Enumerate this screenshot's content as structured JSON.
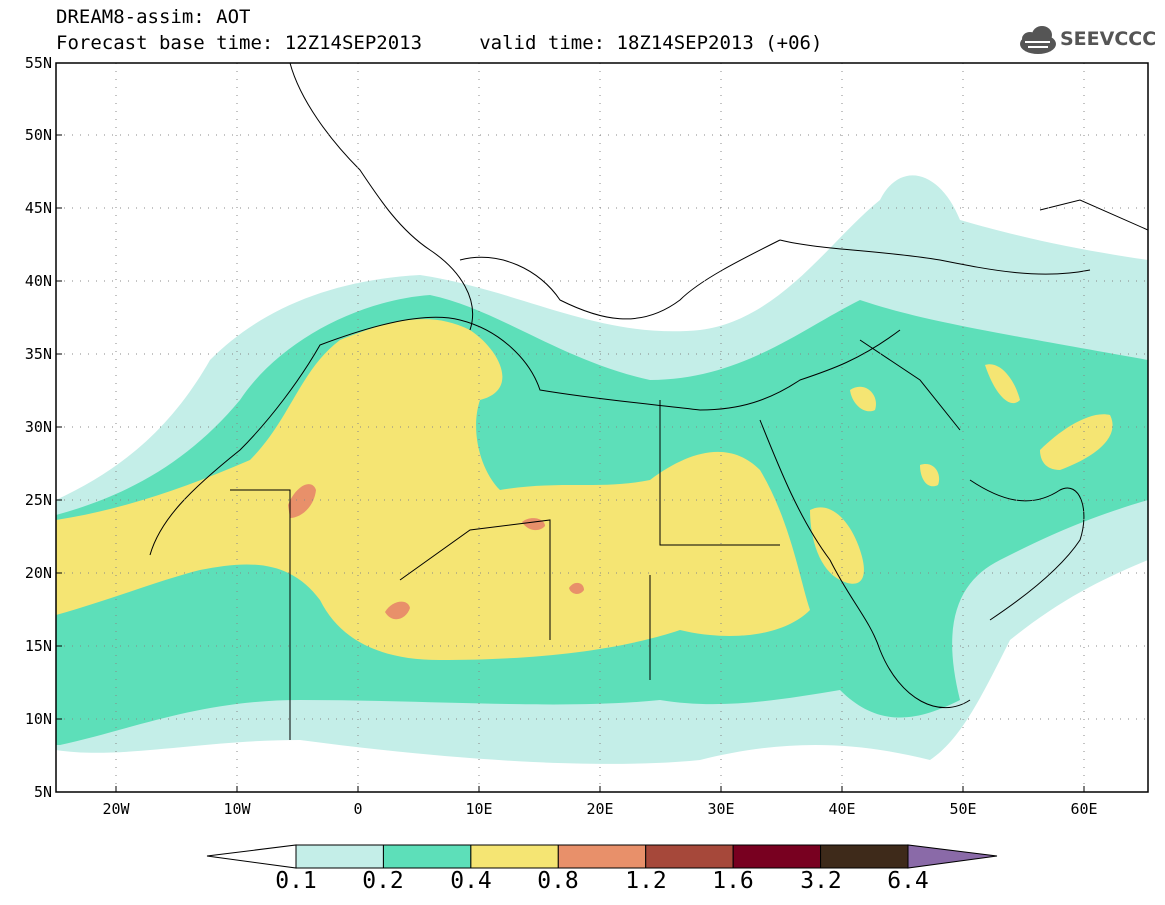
{
  "header": {
    "title_line1": "DREAM8-assim: AOT",
    "title_line2": "Forecast base time: 12Z14SEP2013     valid time: 18Z14SEP2013 (+06)"
  },
  "logo": {
    "text": "SEEVCCC",
    "icon": "cloud-icon"
  },
  "map": {
    "lat_labels": [
      "55N",
      "50N",
      "45N",
      "40N",
      "35N",
      "30N",
      "25N",
      "20N",
      "15N",
      "10N",
      "5N"
    ],
    "lon_labels": [
      "20W",
      "10W",
      "0",
      "10E",
      "20E",
      "30E",
      "40E",
      "50E",
      "60E"
    ],
    "extent": {
      "lon": [
        -25,
        65
      ],
      "lat": [
        5,
        55
      ]
    }
  },
  "legend": {
    "labels": [
      "0.1",
      "0.2",
      "0.4",
      "0.8",
      "1.2",
      "1.6",
      "3.2",
      "6.4"
    ],
    "colors": [
      "#c4eee8",
      "#5ddfb9",
      "#f5e573",
      "#e8906a",
      "#a6483a",
      "#780020",
      "#3e2a1a",
      "#8a6aa8"
    ]
  }
}
